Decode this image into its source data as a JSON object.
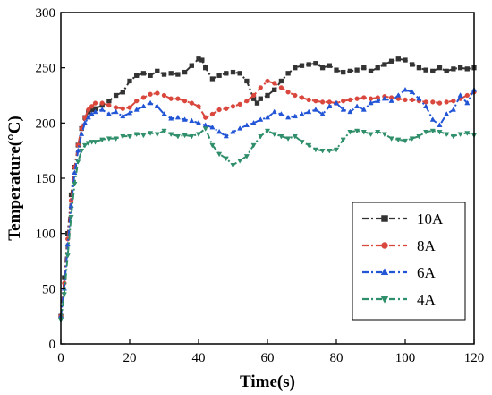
{
  "chart_data": {
    "type": "line",
    "title": "",
    "xlabel": "Time(s)",
    "ylabel": "Temperature(°C)",
    "xlim": [
      0,
      120
    ],
    "ylim": [
      0,
      300
    ],
    "xticks": [
      0,
      20,
      40,
      60,
      80,
      100,
      120
    ],
    "yticks": [
      0,
      50,
      100,
      150,
      200,
      250,
      300
    ],
    "grid": false,
    "legend_position": "center-right",
    "series": [
      {
        "name": "10A",
        "color": "#333333",
        "marker": "square",
        "dash": "dash-dot",
        "x": [
          0,
          1,
          2,
          3,
          4,
          5,
          6,
          7,
          8,
          9,
          10,
          12,
          14,
          16,
          18,
          20,
          22,
          24,
          26,
          28,
          30,
          32,
          34,
          36,
          38,
          40,
          41,
          42,
          44,
          46,
          48,
          50,
          52,
          54,
          56,
          57,
          58,
          60,
          62,
          64,
          66,
          68,
          70,
          72,
          74,
          76,
          78,
          80,
          82,
          84,
          86,
          88,
          90,
          92,
          94,
          96,
          98,
          100,
          102,
          104,
          106,
          108,
          110,
          112,
          114,
          116,
          118,
          120
        ],
        "y": [
          25,
          60,
          100,
          135,
          160,
          180,
          195,
          205,
          210,
          212,
          213,
          216,
          220,
          225,
          228,
          238,
          243,
          245,
          243,
          247,
          244,
          245,
          244,
          246,
          252,
          258,
          257,
          250,
          240,
          243,
          245,
          246,
          245,
          238,
          222,
          218,
          222,
          225,
          230,
          238,
          245,
          250,
          252,
          253,
          254,
          250,
          252,
          248,
          246,
          247,
          248,
          250,
          247,
          250,
          253,
          256,
          258,
          257,
          253,
          250,
          248,
          247,
          250,
          247,
          249,
          250,
          249,
          250
        ]
      },
      {
        "name": "8A",
        "color": "#d9473d",
        "marker": "circle",
        "dash": "dash-dot",
        "x": [
          0,
          1,
          2,
          3,
          4,
          5,
          6,
          7,
          8,
          9,
          10,
          12,
          14,
          16,
          18,
          20,
          22,
          24,
          26,
          28,
          30,
          32,
          34,
          36,
          38,
          40,
          42,
          44,
          46,
          48,
          50,
          52,
          54,
          56,
          58,
          60,
          62,
          64,
          66,
          68,
          70,
          72,
          74,
          76,
          78,
          80,
          82,
          84,
          86,
          88,
          90,
          92,
          94,
          96,
          98,
          100,
          102,
          104,
          106,
          108,
          110,
          112,
          114,
          116,
          118,
          120
        ],
        "y": [
          25,
          55,
          95,
          130,
          160,
          180,
          195,
          205,
          212,
          215,
          218,
          218,
          216,
          214,
          213,
          214,
          220,
          223,
          226,
          227,
          225,
          222,
          222,
          220,
          218,
          215,
          205,
          208,
          212,
          213,
          215,
          217,
          220,
          225,
          232,
          238,
          236,
          232,
          228,
          225,
          223,
          221,
          220,
          219,
          219,
          218,
          220,
          221,
          222,
          223,
          222,
          223,
          224,
          223,
          222,
          221,
          221,
          220,
          219,
          219,
          218,
          219,
          220,
          222,
          225,
          228
        ]
      },
      {
        "name": "6A",
        "color": "#2255d6",
        "marker": "triangle-up",
        "dash": "dash-dot",
        "x": [
          0,
          1,
          2,
          3,
          4,
          5,
          6,
          7,
          8,
          9,
          10,
          12,
          14,
          16,
          18,
          20,
          22,
          24,
          26,
          28,
          30,
          32,
          34,
          36,
          38,
          40,
          42,
          44,
          46,
          48,
          50,
          52,
          54,
          56,
          58,
          60,
          62,
          64,
          66,
          68,
          70,
          72,
          74,
          76,
          78,
          80,
          82,
          84,
          86,
          88,
          90,
          92,
          94,
          96,
          98,
          100,
          102,
          104,
          106,
          108,
          110,
          112,
          114,
          116,
          118,
          120
        ],
        "y": [
          25,
          50,
          90,
          125,
          155,
          175,
          190,
          200,
          205,
          208,
          210,
          212,
          208,
          210,
          206,
          209,
          212,
          215,
          218,
          215,
          208,
          204,
          205,
          203,
          202,
          200,
          198,
          196,
          192,
          188,
          192,
          195,
          198,
          200,
          203,
          205,
          210,
          208,
          205,
          206,
          208,
          210,
          212,
          208,
          215,
          218,
          212,
          210,
          215,
          212,
          218,
          220,
          222,
          220,
          225,
          230,
          228,
          222,
          215,
          203,
          198,
          208,
          212,
          225,
          218,
          230
        ]
      },
      {
        "name": "4A",
        "color": "#2f8f6a",
        "marker": "triangle-down",
        "dash": "dash-dot",
        "x": [
          0,
          1,
          2,
          3,
          4,
          5,
          6,
          7,
          8,
          9,
          10,
          12,
          14,
          16,
          18,
          20,
          22,
          24,
          26,
          28,
          30,
          32,
          34,
          36,
          38,
          40,
          42,
          44,
          46,
          48,
          50,
          52,
          54,
          56,
          58,
          60,
          62,
          64,
          66,
          68,
          70,
          72,
          74,
          76,
          78,
          80,
          82,
          84,
          86,
          88,
          90,
          92,
          94,
          96,
          98,
          100,
          102,
          104,
          106,
          108,
          110,
          112,
          114,
          116,
          118,
          120
        ],
        "y": [
          22,
          45,
          80,
          115,
          145,
          165,
          175,
          180,
          182,
          183,
          183,
          185,
          186,
          186,
          188,
          188,
          190,
          189,
          191,
          190,
          193,
          190,
          188,
          189,
          188,
          190,
          195,
          180,
          172,
          168,
          162,
          166,
          170,
          180,
          188,
          193,
          190,
          188,
          186,
          188,
          183,
          180,
          176,
          175,
          175,
          176,
          185,
          192,
          193,
          192,
          190,
          192,
          190,
          186,
          185,
          184,
          186,
          188,
          192,
          193,
          192,
          190,
          188,
          190,
          191,
          189
        ]
      }
    ]
  }
}
